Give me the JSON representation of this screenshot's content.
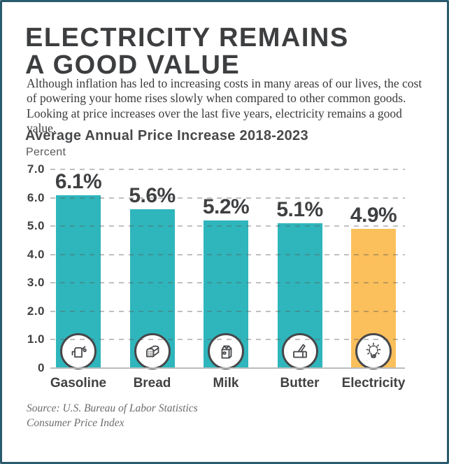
{
  "title": {
    "line1": "ELECTRICITY REMAINS",
    "line2": "A GOOD VALUE"
  },
  "intro": "Although inflation has led to increasing costs in many areas of our lives, the cost of powering your home rises slowly when compared to other common goods. Looking at price increases over the last five years, electricity remains a good value.",
  "chart_data": {
    "type": "bar",
    "title": "Average Annual Price Increase 2018-2023",
    "ylabel": "Percent",
    "categories": [
      "Gasoline",
      "Bread",
      "Milk",
      "Butter",
      "Electricity"
    ],
    "values": [
      6.1,
      5.6,
      5.2,
      5.1,
      4.9
    ],
    "value_labels": [
      "6.1%",
      "5.6%",
      "5.2%",
      "5.1%",
      "4.9%"
    ],
    "yticks": [
      "7.0",
      "6.0",
      "5.0",
      "4.0",
      "3.0",
      "2.0",
      "1.0",
      "0"
    ],
    "ytick_values": [
      7,
      6,
      5,
      4,
      3,
      2,
      1,
      0
    ],
    "ylim": [
      0,
      7
    ],
    "grid": "horizontal-dashed",
    "legend": "none",
    "bar_colors": [
      "#2eb6bc",
      "#2eb6bc",
      "#2eb6bc",
      "#2eb6bc",
      "#fbbf5b"
    ],
    "icons": [
      "fuel-pump",
      "bread-loaf",
      "milk-carton",
      "butter-knife",
      "light-bulb"
    ]
  },
  "source": {
    "line1": "Source: U.S. Bureau of Labor Statistics",
    "line2": "Consumer Price Index"
  },
  "colors": {
    "teal": "#2eb6bc",
    "orange": "#fbbf5b",
    "text_dark": "#414042",
    "border": "#2a5a6e",
    "grid": "#c8c8c8"
  }
}
